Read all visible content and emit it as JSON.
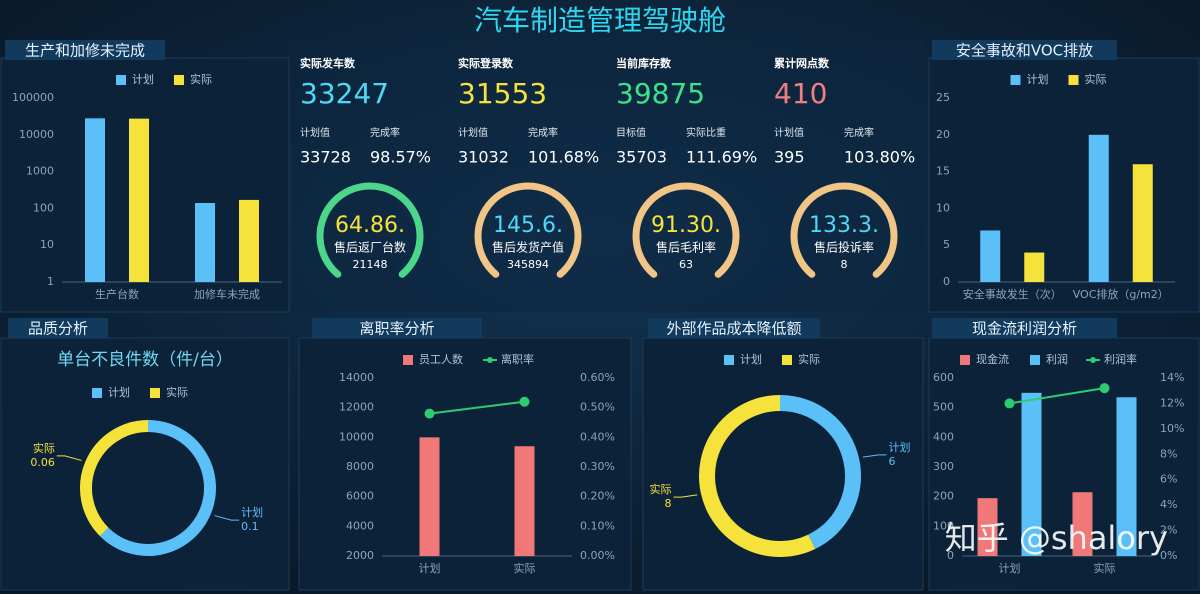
{
  "title": "汽车制造管理驾驶舱",
  "watermark": "知乎 @shalory",
  "kpis": [
    {
      "label": "实际发车数",
      "value": "33247",
      "color": "#4fd8f5",
      "sub": [
        {
          "label": "计划值",
          "value": "33728"
        },
        {
          "label": "完成率",
          "value": "98.57%"
        }
      ]
    },
    {
      "label": "实际登录数",
      "value": "31553",
      "color": "#f5e23a",
      "sub": [
        {
          "label": "计划值",
          "value": "31032"
        },
        {
          "label": "完成率",
          "value": "101.68%"
        }
      ]
    },
    {
      "label": "当前库存数",
      "value": "39875",
      "color": "#3ee08a",
      "sub": [
        {
          "label": "目标值",
          "value": "35703"
        },
        {
          "label": "实际比重",
          "value": "111.69%"
        }
      ]
    },
    {
      "label": "累计网点数",
      "value": "410",
      "color": "#f08080",
      "sub": [
        {
          "label": "计划值",
          "value": "395"
        },
        {
          "label": "完成率",
          "value": "103.80%"
        }
      ]
    }
  ],
  "gauges": [
    {
      "value": "64.86.",
      "label": "售后返厂台数",
      "sub": "21148",
      "color": "#f5e23a",
      "ring": "#4cd68a"
    },
    {
      "value": "145.6.",
      "label": "售后发货产值",
      "sub": "345894",
      "color": "#4fd8f5",
      "ring": "#f0c585"
    },
    {
      "value": "91.30.",
      "label": "售后毛利率",
      "sub": "63",
      "color": "#f5e23a",
      "ring": "#f0c585"
    },
    {
      "value": "133.3.",
      "label": "售后投诉率",
      "sub": "8",
      "color": "#4fd8f5",
      "ring": "#f0c585"
    }
  ],
  "chart_data": [
    {
      "type": "bar",
      "title": "生产和加修未完成",
      "log_scale": true,
      "categories": [
        "生产台数",
        "加修车未完成"
      ],
      "series": [
        {
          "name": "计划",
          "color": "#5bc0f8",
          "values": [
            28000,
            140
          ]
        },
        {
          "name": "实际",
          "color": "#f5e23a",
          "values": [
            27500,
            170
          ]
        }
      ],
      "ylim": [
        1,
        100000
      ],
      "yticks": [
        1,
        10,
        100,
        1000,
        10000,
        100000
      ]
    },
    {
      "type": "bar",
      "title": "安全事故和VOC排放",
      "categories": [
        "安全事故发生（次）",
        "VOC排放（g/m2）"
      ],
      "series": [
        {
          "name": "计划",
          "color": "#5bc0f8",
          "values": [
            7,
            20
          ]
        },
        {
          "name": "实际",
          "color": "#f5e23a",
          "values": [
            4,
            16
          ]
        }
      ],
      "ylim": [
        0,
        25
      ],
      "yticks": [
        0,
        5,
        10,
        15,
        20,
        25
      ]
    },
    {
      "type": "pie",
      "title": "品质分析",
      "subtitle": "单台不良件数（件/台）",
      "categories": [
        "计划",
        "实际"
      ],
      "values": [
        0.1,
        0.06
      ],
      "colors": [
        "#5bc0f8",
        "#f5e23a"
      ]
    },
    {
      "type": "bar",
      "title": "离职率分析",
      "categories": [
        "计划",
        "实际"
      ],
      "series": [
        {
          "name": "员工人数",
          "color": "#f07878",
          "values": [
            10000,
            9400
          ]
        },
        {
          "name": "离职率",
          "color": "#2ecc71",
          "type": "line",
          "axis": "y2",
          "values": [
            0.48,
            0.52
          ]
        }
      ],
      "ylim": [
        2000,
        14000
      ],
      "yticks": [
        2000,
        4000,
        6000,
        8000,
        10000,
        12000,
        14000
      ],
      "y2lim": [
        0,
        0.6
      ],
      "y2ticks": [
        {
          "value": 0,
          "label": "0.00%"
        },
        {
          "value": 0.1,
          "label": "0.10%"
        },
        {
          "value": 0.2,
          "label": "0.20%"
        },
        {
          "value": 0.3,
          "label": "0.30%"
        },
        {
          "value": 0.4,
          "label": "0.40%"
        },
        {
          "value": 0.5,
          "label": "0.50%"
        },
        {
          "value": 0.6,
          "label": "0.60%"
        }
      ]
    },
    {
      "type": "pie",
      "title": "外部作品成本降低额",
      "categories": [
        "计划",
        "实际"
      ],
      "values": [
        6,
        8
      ],
      "colors": [
        "#5bc0f8",
        "#f5e23a"
      ]
    },
    {
      "type": "bar",
      "title": "现金流利润分析",
      "categories": [
        "计划",
        "实际"
      ],
      "series": [
        {
          "name": "现金流",
          "color": "#f07878",
          "values": [
            195,
            215
          ]
        },
        {
          "name": "利润",
          "color": "#5bc0f8",
          "values": [
            550,
            535
          ]
        },
        {
          "name": "利润率",
          "color": "#2ecc71",
          "type": "line",
          "axis": "y2",
          "values": [
            12,
            13.2
          ]
        }
      ],
      "ylim": [
        0,
        600
      ],
      "yticks": [
        0,
        100,
        200,
        300,
        400,
        500,
        600
      ],
      "y2lim": [
        0,
        14
      ],
      "y2ticks": [
        {
          "value": 0,
          "label": "0%"
        },
        {
          "value": 2,
          "label": "2%"
        },
        {
          "value": 4,
          "label": "4%"
        },
        {
          "value": 6,
          "label": "6%"
        },
        {
          "value": 8,
          "label": "8%"
        },
        {
          "value": 10,
          "label": "10%"
        },
        {
          "value": 12,
          "label": "12%"
        },
        {
          "value": 14,
          "label": "14%"
        }
      ]
    }
  ]
}
